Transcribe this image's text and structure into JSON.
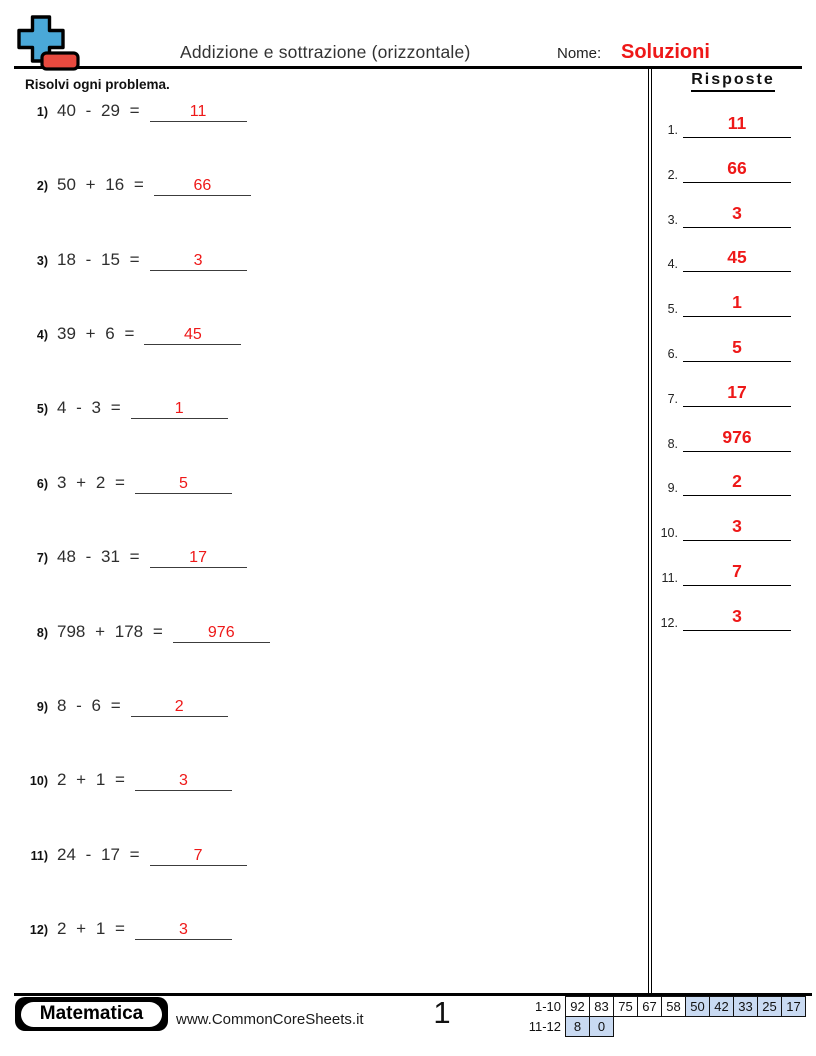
{
  "page": {
    "title": "Addizione e sottrazione (orizzontale)",
    "name_label": "Nome:",
    "name_value": "Soluzioni",
    "instructions": "Risolvi ogni problema.",
    "page_number": "1",
    "website": "www.CommonCoreSheets.it",
    "brand": "Matematica"
  },
  "colors": {
    "answer_red": "#ee1818",
    "logo_blue": "#4aa8d8",
    "logo_red": "#e84a3f",
    "cell_blue": "#c9daf2"
  },
  "icons": {
    "logo": "plus-minus-icon"
  },
  "problems": [
    {
      "num": "1)",
      "expression": "40 - 29 =",
      "answer": "11"
    },
    {
      "num": "2)",
      "expression": "50 + 16 =",
      "answer": "66"
    },
    {
      "num": "3)",
      "expression": "18 - 15 =",
      "answer": "3"
    },
    {
      "num": "4)",
      "expression": "39 + 6 =",
      "answer": "45"
    },
    {
      "num": "5)",
      "expression": "4 - 3 =",
      "answer": "1"
    },
    {
      "num": "6)",
      "expression": "3 + 2 =",
      "answer": "5"
    },
    {
      "num": "7)",
      "expression": "48 - 31 =",
      "answer": "17"
    },
    {
      "num": "8)",
      "expression": "798 + 178 =",
      "answer": "976"
    },
    {
      "num": "9)",
      "expression": "8 - 6 =",
      "answer": "2"
    },
    {
      "num": "10)",
      "expression": "2 + 1 =",
      "answer": "3"
    },
    {
      "num": "11)",
      "expression": "24 - 17 =",
      "answer": "7"
    },
    {
      "num": "12)",
      "expression": "2 + 1 =",
      "answer": "3"
    }
  ],
  "answers_column": {
    "title": "Risposte",
    "items": [
      {
        "num": "1.",
        "value": "11"
      },
      {
        "num": "2.",
        "value": "66"
      },
      {
        "num": "3.",
        "value": "3"
      },
      {
        "num": "4.",
        "value": "45"
      },
      {
        "num": "5.",
        "value": "1"
      },
      {
        "num": "6.",
        "value": "5"
      },
      {
        "num": "7.",
        "value": "17"
      },
      {
        "num": "8.",
        "value": "976"
      },
      {
        "num": "9.",
        "value": "2"
      },
      {
        "num": "10.",
        "value": "3"
      },
      {
        "num": "11.",
        "value": "7"
      },
      {
        "num": "12.",
        "value": "3"
      }
    ]
  },
  "score_table": {
    "rows": [
      {
        "label": "1-10",
        "cells": [
          {
            "value": "92",
            "shaded": false
          },
          {
            "value": "83",
            "shaded": false
          },
          {
            "value": "75",
            "shaded": false
          },
          {
            "value": "67",
            "shaded": false
          },
          {
            "value": "58",
            "shaded": false
          },
          {
            "value": "50",
            "shaded": true
          },
          {
            "value": "42",
            "shaded": true
          },
          {
            "value": "33",
            "shaded": true
          },
          {
            "value": "25",
            "shaded": true
          },
          {
            "value": "17",
            "shaded": true
          }
        ]
      },
      {
        "label": "11-12",
        "cells": [
          {
            "value": "8",
            "shaded": true
          },
          {
            "value": "0",
            "shaded": true
          }
        ]
      }
    ]
  }
}
